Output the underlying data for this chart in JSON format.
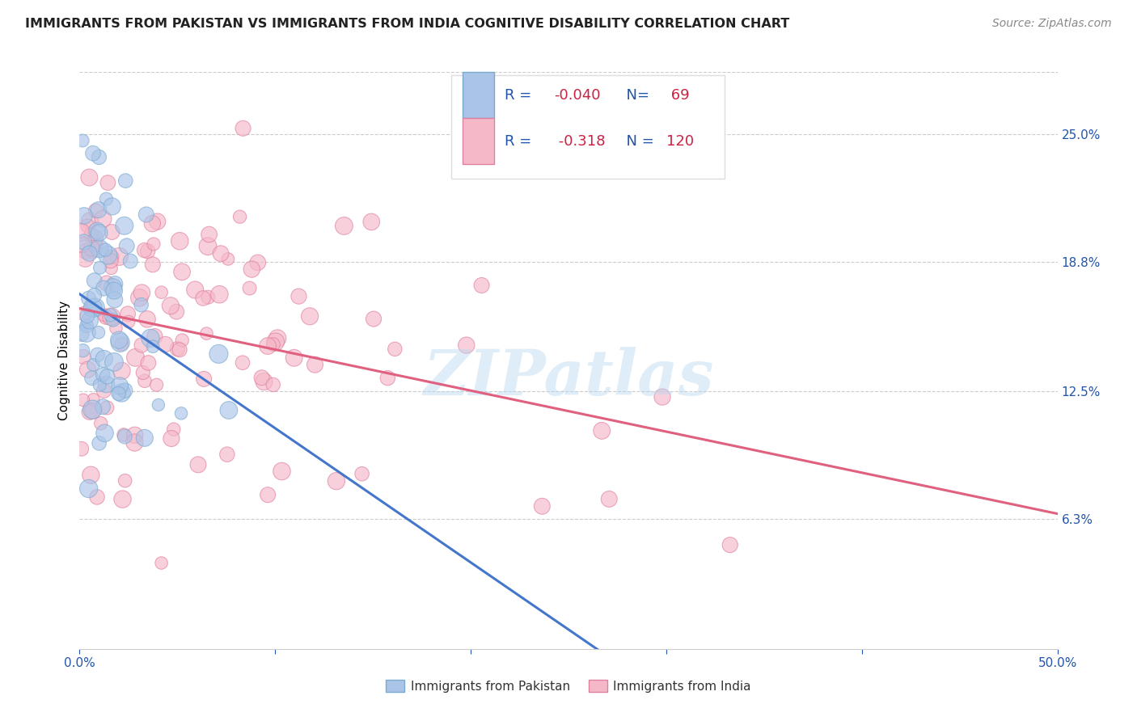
{
  "title": "IMMIGRANTS FROM PAKISTAN VS IMMIGRANTS FROM INDIA COGNITIVE DISABILITY CORRELATION CHART",
  "source": "Source: ZipAtlas.com",
  "ylabel": "Cognitive Disability",
  "right_yticks": [
    "25.0%",
    "18.8%",
    "12.5%",
    "6.3%"
  ],
  "right_ytick_vals": [
    0.25,
    0.188,
    0.125,
    0.063
  ],
  "xlim": [
    0.0,
    0.5
  ],
  "ylim": [
    0.0,
    0.28
  ],
  "pakistan_color": "#aac4e8",
  "pakistan_edge": "#7aaad0",
  "india_color": "#f5b8c8",
  "india_edge": "#e080a0",
  "pakistan_R": -0.04,
  "pakistan_N": 69,
  "india_R": -0.318,
  "india_N": 120,
  "legend_label_pakistan": "Immigrants from Pakistan",
  "legend_label_india": "Immigrants from India",
  "watermark": "ZIPatlas",
  "legend_text_color": "#2255aa",
  "trend_pak_color": "#4477cc",
  "trend_ind_color": "#e06080"
}
